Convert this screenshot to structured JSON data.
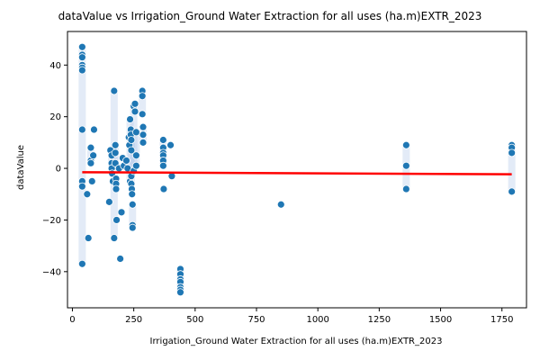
{
  "chart_data": {
    "type": "scatter",
    "title": "dataValue vs Irrigation_Ground Water Extraction for all uses (ha.m)EXTR_2023",
    "xlabel": "Irrigation_Ground Water Extraction for all uses (ha.m)EXTR_2023",
    "ylabel": "dataValue",
    "xlim": [
      -20,
      1850
    ],
    "ylim": [
      -54,
      53
    ],
    "x_ticks": [
      0,
      250,
      500,
      750,
      1000,
      1250,
      1500,
      1750
    ],
    "y_ticks": [
      -40,
      -20,
      0,
      20,
      40
    ],
    "x_tick_labels": [
      "0",
      "250",
      "500",
      "750",
      "1000",
      "1250",
      "1500",
      "1750"
    ],
    "y_tick_labels": [
      "−40",
      "−20",
      "0",
      "20",
      "40"
    ],
    "grid": false,
    "colors": {
      "points": "#1f77b4",
      "point_edge": "#ffffff",
      "trend": "#ff0000",
      "band": "#aec7e8"
    },
    "series": [
      {
        "points": [
          [
            40,
            47
          ],
          [
            40,
            44
          ],
          [
            40,
            43
          ],
          [
            40,
            40
          ],
          [
            40,
            39
          ],
          [
            40,
            38
          ],
          [
            40,
            15
          ],
          [
            40,
            -5
          ],
          [
            40,
            -7
          ],
          [
            40,
            -37
          ],
          [
            60,
            -10
          ],
          [
            65,
            -27
          ],
          [
            75,
            8
          ],
          [
            75,
            3
          ],
          [
            75,
            2
          ],
          [
            80,
            -5
          ],
          [
            85,
            5
          ],
          [
            88,
            15
          ],
          [
            150,
            -13
          ],
          [
            155,
            7
          ],
          [
            160,
            5
          ],
          [
            160,
            2
          ],
          [
            160,
            0
          ],
          [
            162,
            -2
          ],
          [
            165,
            -5
          ],
          [
            170,
            30
          ],
          [
            170,
            -27
          ],
          [
            175,
            9
          ],
          [
            175,
            6
          ],
          [
            175,
            2
          ],
          [
            178,
            -4
          ],
          [
            178,
            -6
          ],
          [
            178,
            -8
          ],
          [
            180,
            -20
          ],
          [
            190,
            0
          ],
          [
            195,
            -35
          ],
          [
            200,
            -17
          ],
          [
            205,
            4
          ],
          [
            210,
            1
          ],
          [
            220,
            3
          ],
          [
            225,
            0
          ],
          [
            230,
            12
          ],
          [
            232,
            9
          ],
          [
            235,
            19
          ],
          [
            235,
            -5
          ],
          [
            238,
            15
          ],
          [
            238,
            13
          ],
          [
            240,
            11
          ],
          [
            240,
            7
          ],
          [
            240,
            -3
          ],
          [
            240,
            -6
          ],
          [
            242,
            -8
          ],
          [
            243,
            -10
          ],
          [
            245,
            -14
          ],
          [
            245,
            -22
          ],
          [
            245,
            -23
          ],
          [
            250,
            -1
          ],
          [
            250,
            24
          ],
          [
            255,
            25
          ],
          [
            255,
            22
          ],
          [
            260,
            14
          ],
          [
            260,
            5
          ],
          [
            260,
            1
          ],
          [
            285,
            30
          ],
          [
            285,
            28
          ],
          [
            285,
            21
          ],
          [
            288,
            16
          ],
          [
            288,
            13
          ],
          [
            288,
            10
          ],
          [
            370,
            11
          ],
          [
            370,
            8
          ],
          [
            370,
            6
          ],
          [
            370,
            5
          ],
          [
            370,
            3
          ],
          [
            370,
            1
          ],
          [
            372,
            -8
          ],
          [
            400,
            9
          ],
          [
            405,
            -3
          ],
          [
            440,
            -39
          ],
          [
            440,
            -41
          ],
          [
            440,
            -43
          ],
          [
            440,
            -44
          ],
          [
            440,
            -46
          ],
          [
            440,
            -47
          ],
          [
            440,
            -48
          ],
          [
            850,
            -14
          ],
          [
            1360,
            9
          ],
          [
            1360,
            1
          ],
          [
            1360,
            -8
          ],
          [
            1790,
            9
          ],
          [
            1790,
            8
          ],
          [
            1790,
            6
          ],
          [
            1790,
            -9
          ]
        ]
      }
    ],
    "trend_line": {
      "x": [
        40,
        1790
      ],
      "y": [
        -1.5,
        -2.3
      ]
    }
  }
}
